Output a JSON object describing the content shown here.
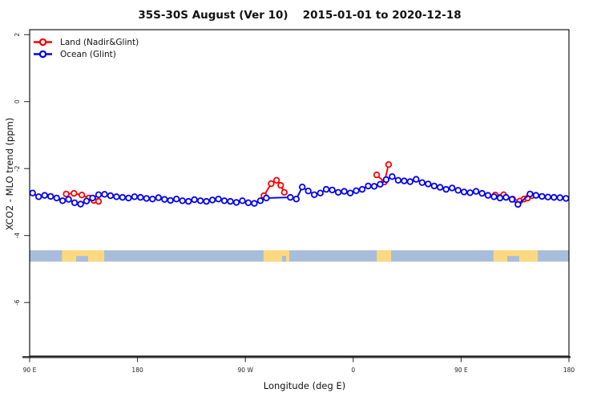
{
  "title": "35S-30S August (Ver 10)   2015-01-01 to 2020-12-18",
  "chart_data": {
    "type": "scatter",
    "title": "35S-30S August (Ver 10)   2015-01-01 to 2020-12-18",
    "xlabel": "Longitude (deg E)",
    "ylabel": "XCO2 - MLO trend (ppm)",
    "xlim": [
      90,
      540
    ],
    "ylim": [
      -7.6,
      2.2
    ],
    "grid": false,
    "legend_position": "top-left",
    "x_ticks": [
      {
        "lon": 90,
        "label": "90 E"
      },
      {
        "lon": 180,
        "label": "180"
      },
      {
        "lon": 270,
        "label": "90 W"
      },
      {
        "lon": 360,
        "label": "0"
      },
      {
        "lon": 450,
        "label": "90 E"
      },
      {
        "lon": 540,
        "label": "180"
      }
    ],
    "y_ticks": [
      {
        "value": 2,
        "label": "2"
      },
      {
        "value": 0,
        "label": "0"
      },
      {
        "value": -2,
        "label": "-2"
      },
      {
        "value": -4,
        "label": "-4"
      },
      {
        "value": -6,
        "label": "-6"
      }
    ],
    "series": [
      {
        "name": "Land (Nadir&Glint)",
        "color": "#ff0000",
        "marker": "open-circle",
        "clusters": [
          [
            [
              120.5,
              -2.76
            ],
            [
              127.0,
              -2.74
            ],
            [
              133.5,
              -2.79
            ],
            [
              139.5,
              -2.88
            ],
            [
              143.5,
              -2.95
            ],
            [
              147.5,
              -2.98
            ]
          ],
          [
            [
              285.5,
              -2.81
            ],
            [
              291.5,
              -2.45
            ],
            [
              296.0,
              -2.35
            ],
            [
              299.5,
              -2.5
            ],
            [
              302.5,
              -2.71
            ]
          ],
          [
            [
              379.5,
              -2.19
            ],
            [
              386.0,
              -2.4
            ],
            [
              389.5,
              -1.88
            ]
          ],
          [
            [
              478.5,
              -2.79
            ],
            [
              485.5,
              -2.78
            ],
            [
              493.0,
              -2.91
            ],
            [
              499.0,
              -2.97
            ],
            [
              502.5,
              -2.91
            ],
            [
              505.5,
              -2.88
            ],
            [
              509.0,
              -2.81
            ]
          ]
        ]
      },
      {
        "name": "Ocean (Glint)",
        "color": "#0000ee",
        "marker": "open-circle",
        "points": [
          [
            92.5,
            -2.73
          ],
          [
            97.5,
            -2.84
          ],
          [
            102.5,
            -2.8
          ],
          [
            107.5,
            -2.83
          ],
          [
            112.5,
            -2.88
          ],
          [
            117.5,
            -2.96
          ],
          [
            122.5,
            -2.92
          ],
          [
            127.5,
            -3.02
          ],
          [
            132.5,
            -3.06
          ],
          [
            137.5,
            -2.97
          ],
          [
            142.5,
            -2.88
          ],
          [
            147.5,
            -2.78
          ],
          [
            152.5,
            -2.77
          ],
          [
            157.5,
            -2.81
          ],
          [
            162.5,
            -2.84
          ],
          [
            167.5,
            -2.86
          ],
          [
            172.5,
            -2.88
          ],
          [
            177.5,
            -2.84
          ],
          [
            182.5,
            -2.86
          ],
          [
            187.5,
            -2.89
          ],
          [
            192.5,
            -2.91
          ],
          [
            197.5,
            -2.87
          ],
          [
            202.5,
            -2.92
          ],
          [
            207.5,
            -2.95
          ],
          [
            212.5,
            -2.91
          ],
          [
            217.5,
            -2.96
          ],
          [
            222.5,
            -2.98
          ],
          [
            227.5,
            -2.93
          ],
          [
            232.5,
            -2.96
          ],
          [
            237.5,
            -2.98
          ],
          [
            242.5,
            -2.94
          ],
          [
            247.5,
            -2.91
          ],
          [
            252.5,
            -2.96
          ],
          [
            257.5,
            -2.98
          ],
          [
            262.5,
            -3.01
          ],
          [
            267.5,
            -2.96
          ],
          [
            272.5,
            -3.02
          ],
          [
            277.5,
            -3.04
          ],
          [
            282.5,
            -2.96
          ],
          [
            287.5,
            -2.88
          ],
          [
            307.5,
            -2.86
          ],
          [
            312.5,
            -2.91
          ],
          [
            317.5,
            -2.55
          ],
          [
            322.5,
            -2.67
          ],
          [
            327.5,
            -2.78
          ],
          [
            332.5,
            -2.73
          ],
          [
            337.5,
            -2.62
          ],
          [
            342.5,
            -2.64
          ],
          [
            347.5,
            -2.71
          ],
          [
            352.5,
            -2.68
          ],
          [
            357.5,
            -2.73
          ],
          [
            362.5,
            -2.66
          ],
          [
            367.5,
            -2.62
          ],
          [
            372.5,
            -2.52
          ],
          [
            377.5,
            -2.53
          ],
          [
            382.5,
            -2.47
          ],
          [
            387.5,
            -2.33
          ],
          [
            392.5,
            -2.24
          ],
          [
            397.5,
            -2.35
          ],
          [
            402.5,
            -2.37
          ],
          [
            407.5,
            -2.39
          ],
          [
            412.5,
            -2.32
          ],
          [
            417.5,
            -2.42
          ],
          [
            422.5,
            -2.46
          ],
          [
            427.5,
            -2.52
          ],
          [
            432.5,
            -2.56
          ],
          [
            437.5,
            -2.62
          ],
          [
            442.5,
            -2.58
          ],
          [
            447.5,
            -2.65
          ],
          [
            452.5,
            -2.7
          ],
          [
            457.5,
            -2.72
          ],
          [
            462.5,
            -2.68
          ],
          [
            467.5,
            -2.74
          ],
          [
            472.5,
            -2.8
          ],
          [
            477.5,
            -2.84
          ],
          [
            482.5,
            -2.88
          ],
          [
            487.5,
            -2.86
          ],
          [
            492.5,
            -2.92
          ],
          [
            497.5,
            -3.07
          ],
          [
            507.5,
            -2.76
          ],
          [
            512.5,
            -2.8
          ],
          [
            517.5,
            -2.83
          ],
          [
            522.5,
            -2.85
          ],
          [
            527.5,
            -2.86
          ],
          [
            532.5,
            -2.87
          ],
          [
            537.5,
            -2.89
          ]
        ]
      }
    ],
    "map_strip": {
      "description": "land/ocean mask band along longitude axis",
      "value_top": -4.44,
      "value_bottom": -4.78,
      "ocean_color": "#a9bdda",
      "land_color": "#fcd980",
      "land_patches": [
        {
          "range": [
            117.0,
            152.2
          ],
          "notches": [
            [
              128.8,
              138.8
            ]
          ]
        },
        {
          "range": [
            285.2,
            306.6
          ],
          "notches": [
            [
              300.6,
              304.0
            ]
          ]
        },
        {
          "range": [
            379.6,
            391.6
          ],
          "notches": []
        },
        {
          "range": [
            477.0,
            514.0
          ],
          "notches": [
            [
              488.5,
              498.5
            ]
          ]
        }
      ]
    }
  },
  "colors": {
    "land_series": "#ff0000",
    "ocean_series": "#0000ee",
    "axis_line": "#3f3f3f",
    "box": "#000000"
  }
}
